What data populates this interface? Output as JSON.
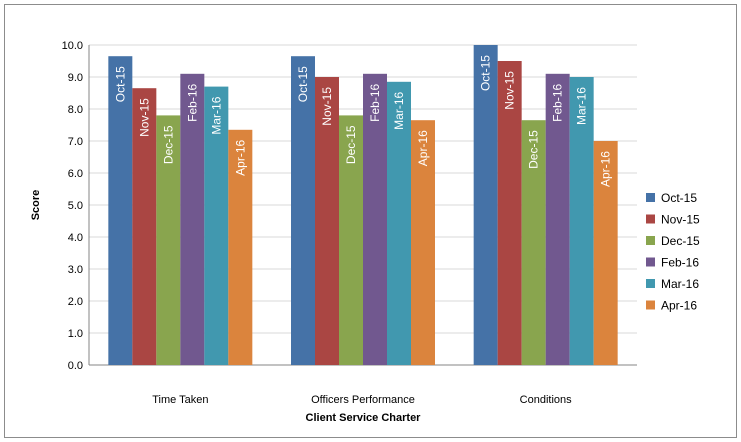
{
  "chart_data": {
    "type": "bar",
    "title": "",
    "xlabel": "Client Service Charter",
    "ylabel": "Score",
    "ylim": [
      0,
      10
    ],
    "yticks": [
      "0.0",
      "1.0",
      "2.0",
      "3.0",
      "4.0",
      "5.0",
      "6.0",
      "7.0",
      "8.0",
      "9.0",
      "10.0"
    ],
    "grid": true,
    "legend_position": "right",
    "categories": [
      "Time Taken",
      "Officers Performance",
      "Conditions"
    ],
    "series": [
      {
        "name": "Oct-15",
        "color": "#4572A7",
        "values": [
          9.65,
          9.65,
          10.0
        ]
      },
      {
        "name": "Nov-15",
        "color": "#AA4643",
        "values": [
          8.65,
          9.0,
          9.5
        ]
      },
      {
        "name": "Dec-15",
        "color": "#89A54E",
        "values": [
          7.8,
          7.8,
          7.65
        ]
      },
      {
        "name": "Feb-16",
        "color": "#71588F",
        "values": [
          9.1,
          9.1,
          9.1
        ]
      },
      {
        "name": "Mar-16",
        "color": "#4198AF",
        "values": [
          8.7,
          8.85,
          9.0
        ]
      },
      {
        "name": "Apr-16",
        "color": "#DB843D",
        "values": [
          7.35,
          7.65,
          7.0
        ]
      }
    ]
  }
}
